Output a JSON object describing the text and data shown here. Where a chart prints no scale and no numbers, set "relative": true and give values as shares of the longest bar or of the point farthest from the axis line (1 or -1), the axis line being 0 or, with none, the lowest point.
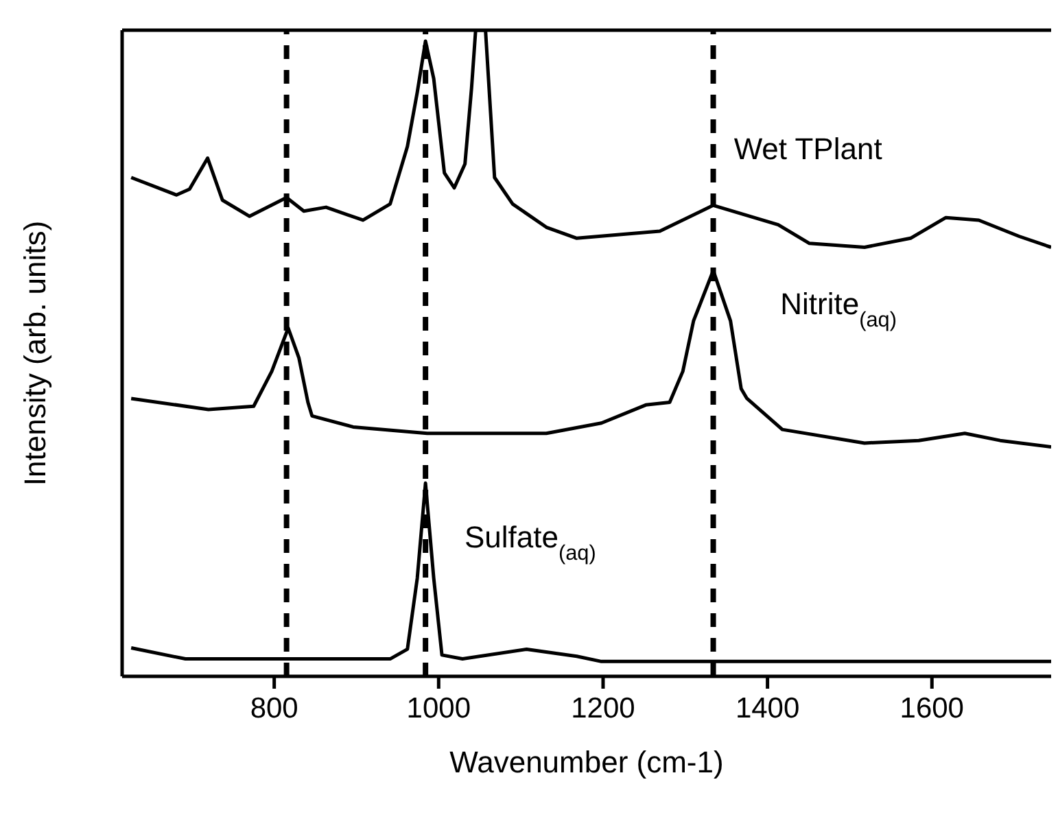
{
  "chart_data": {
    "type": "line",
    "xlabel": "Wavenumber (cm-1)",
    "ylabel": "Intensity (arb. units)",
    "relative": true,
    "xlim": [
      615,
      1745
    ],
    "xticks": [
      800,
      1000,
      1200,
      1400,
      1600
    ],
    "grid": false,
    "legend": false,
    "marker": "none",
    "line_style": "solid",
    "series": [
      {
        "name": "Wet TPlant",
        "color": "#000000",
        "x": [
          626,
          681,
          697,
          719,
          737,
          770,
          815,
          836,
          863,
          908,
          941,
          962,
          974,
          984,
          994,
          1007,
          1019,
          1032,
          1040,
          1045,
          1057,
          1068,
          1090,
          1131,
          1168,
          1269,
          1334,
          1413,
          1451,
          1518,
          1574,
          1617,
          1657,
          1706,
          1745
        ],
        "values": [
          0.772,
          0.745,
          0.754,
          0.802,
          0.737,
          0.712,
          0.741,
          0.72,
          0.726,
          0.706,
          0.731,
          0.82,
          0.904,
          0.983,
          0.925,
          0.779,
          0.756,
          0.793,
          0.91,
          1,
          1,
          0.772,
          0.731,
          0.695,
          0.678,
          0.689,
          0.729,
          0.699,
          0.67,
          0.664,
          0.678,
          0.71,
          0.706,
          0.681,
          0.664
        ]
      },
      {
        "name": "Nitrite$_{(aq)}$",
        "color": "#000000",
        "x": [
          626,
          720,
          775,
          797,
          817,
          830,
          841,
          846,
          896,
          986,
          1131,
          1198,
          1252,
          1281,
          1297,
          1310,
          1334,
          1355,
          1368,
          1375,
          1418,
          1518,
          1584,
          1640,
          1683,
          1745
        ],
        "values": [
          0.43,
          0.413,
          0.418,
          0.472,
          0.539,
          0.493,
          0.424,
          0.403,
          0.386,
          0.376,
          0.376,
          0.392,
          0.42,
          0.424,
          0.472,
          0.55,
          0.628,
          0.55,
          0.445,
          0.43,
          0.382,
          0.361,
          0.365,
          0.376,
          0.365,
          0.355
        ]
      },
      {
        "name": "Sulfate$_{(aq)}$",
        "color": "#000000",
        "x": [
          626,
          692,
          941,
          962,
          974,
          984,
          994,
          1004,
          1029,
          1107,
          1168,
          1198,
          1745
        ],
        "values": [
          0.044,
          0.027,
          0.027,
          0.042,
          0.152,
          0.299,
          0.152,
          0.033,
          0.027,
          0.042,
          0.031,
          0.023,
          0.023
        ]
      }
    ],
    "ref_lines": [
      {
        "axis": "x",
        "value": 815,
        "color": "#000000",
        "line_style": "dashed"
      },
      {
        "axis": "x",
        "value": 984,
        "color": "#000000",
        "line_style": "dashed"
      },
      {
        "axis": "x",
        "value": 1334,
        "color": "#000000",
        "line_style": "dashed"
      }
    ]
  }
}
